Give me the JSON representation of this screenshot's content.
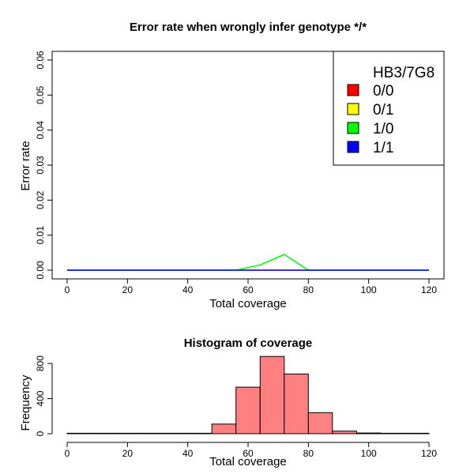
{
  "chart_data": [
    {
      "type": "line",
      "title": "Error rate when wrongly infer genotype */*",
      "xlabel": "Total coverage",
      "ylabel": "Error rate",
      "xlim": [
        0,
        120
      ],
      "ylim": [
        0,
        0.06
      ],
      "xticks": [
        "0",
        "20",
        "40",
        "60",
        "80",
        "100",
        "120"
      ],
      "yticks": [
        "0.00",
        "0.01",
        "0.02",
        "0.03",
        "0.04",
        "0.05",
        "0.06"
      ],
      "legend": {
        "position": "top-right",
        "title": "HB3/7G8",
        "entries": [
          "0/0",
          "0/1",
          "1/0",
          "1/1"
        ]
      },
      "x": [
        0,
        8,
        16,
        24,
        32,
        40,
        48,
        56,
        64,
        72,
        80,
        88,
        96,
        104,
        112,
        120
      ],
      "series": [
        {
          "name": "0/0",
          "color": "#ff0000",
          "values": [
            0,
            0,
            0,
            0,
            0,
            0,
            0,
            0,
            0,
            0,
            0,
            0,
            0,
            0,
            0,
            0
          ]
        },
        {
          "name": "0/1",
          "color": "#ffff00",
          "values": [
            0,
            0,
            0,
            0,
            0,
            0,
            0,
            0,
            0,
            0,
            0,
            0,
            0,
            0,
            0,
            0
          ]
        },
        {
          "name": "1/0",
          "color": "#00ff00",
          "values": [
            0,
            0,
            0,
            0,
            0,
            0,
            0,
            0,
            0.0015,
            0.0045,
            0,
            0,
            0,
            0,
            0,
            0
          ]
        },
        {
          "name": "1/1",
          "color": "#0000ff",
          "values": [
            0,
            0,
            0,
            0,
            0,
            0,
            0,
            0,
            0,
            0,
            0,
            0,
            0,
            0,
            0,
            0
          ]
        }
      ],
      "grid": false
    },
    {
      "type": "bar",
      "title": "Histogram of coverage",
      "xlabel": "Total coverage",
      "ylabel": "Frequency",
      "xlim": [
        0,
        120
      ],
      "ylim": [
        0,
        900
      ],
      "xticks": [
        "0",
        "20",
        "40",
        "60",
        "80",
        "100",
        "120"
      ],
      "yticks": [
        "0",
        "400",
        "800"
      ],
      "bar_color": "#ff8080",
      "bins": [
        {
          "x0": 0,
          "x1": 8,
          "count": 0
        },
        {
          "x0": 8,
          "x1": 16,
          "count": 0
        },
        {
          "x0": 16,
          "x1": 24,
          "count": 0
        },
        {
          "x0": 24,
          "x1": 32,
          "count": 0
        },
        {
          "x0": 32,
          "x1": 40,
          "count": 0
        },
        {
          "x0": 40,
          "x1": 48,
          "count": 3
        },
        {
          "x0": 48,
          "x1": 56,
          "count": 110
        },
        {
          "x0": 56,
          "x1": 64,
          "count": 530
        },
        {
          "x0": 64,
          "x1": 72,
          "count": 880
        },
        {
          "x0": 72,
          "x1": 80,
          "count": 680
        },
        {
          "x0": 80,
          "x1": 88,
          "count": 240
        },
        {
          "x0": 88,
          "x1": 96,
          "count": 30
        },
        {
          "x0": 96,
          "x1": 104,
          "count": 8
        },
        {
          "x0": 104,
          "x1": 112,
          "count": 1
        },
        {
          "x0": 112,
          "x1": 120,
          "count": 2
        }
      ],
      "grid": false
    }
  ]
}
